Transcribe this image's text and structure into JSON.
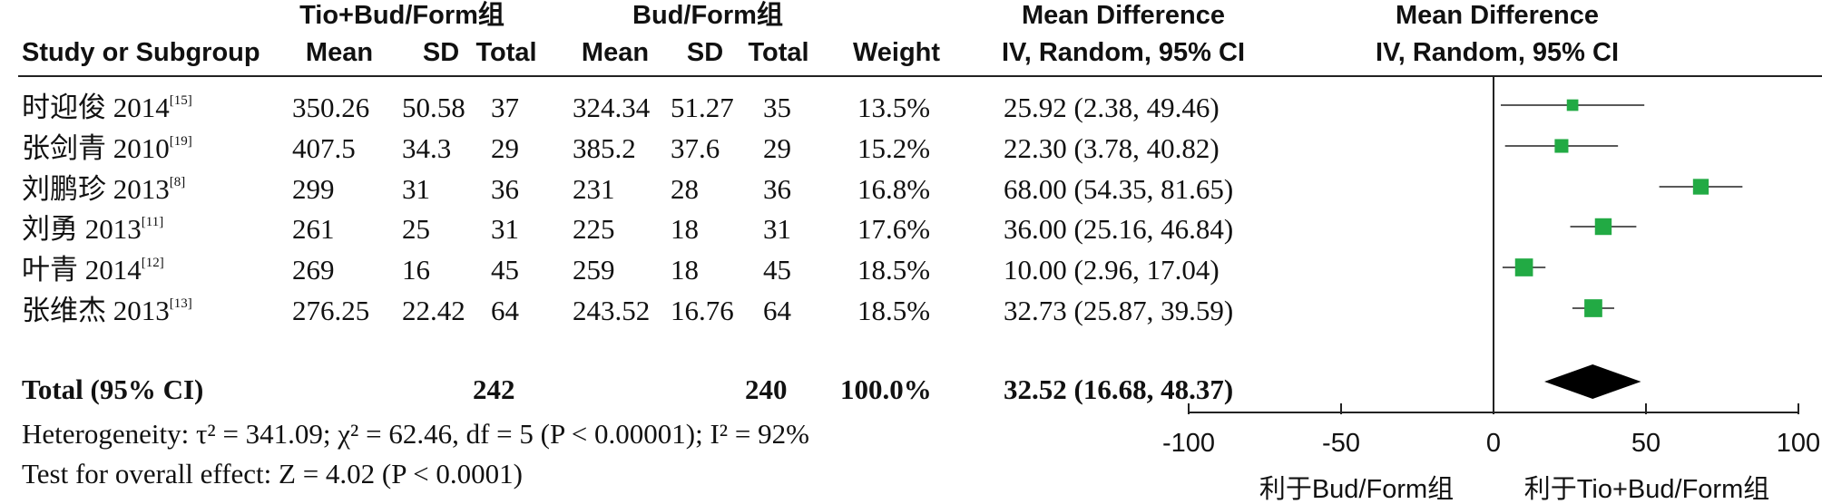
{
  "header": {
    "group1": "Tio+Bud/Form组",
    "group2": "Bud/Form组",
    "md_title": "Mean Difference",
    "md_title_plot": "Mean Difference",
    "col_study": "Study or Subgroup",
    "col_mean1": "Mean",
    "col_sd1": "SD",
    "col_total1": "Total",
    "col_mean2": "Mean",
    "col_sd2": "SD",
    "col_total2": "Total",
    "col_weight": "Weight",
    "col_ci": "IV, Random, 95% CI",
    "col_ci_plot": "IV, Random, 95% CI"
  },
  "studies": [
    {
      "name": "时迎俊 2014",
      "ref": "[15]",
      "mean1": "350.26",
      "sd1": "50.58",
      "n1": "37",
      "mean2": "324.34",
      "sd2": "51.27",
      "n2": "35",
      "weight": "13.5%",
      "ci": "25.92 (2.38, 49.46)"
    },
    {
      "name": "张剑青 2010",
      "ref": "[19]",
      "mean1": "407.5",
      "sd1": "34.3",
      "n1": "29",
      "mean2": "385.2",
      "sd2": "37.6",
      "n2": "29",
      "weight": "15.2%",
      "ci": "22.30 (3.78, 40.82)"
    },
    {
      "name": "刘鹏珍 2013",
      "ref": "[8]",
      "mean1": "299",
      "sd1": "31",
      "n1": "36",
      "mean2": "231",
      "sd2": "28",
      "n2": "36",
      "weight": "16.8%",
      "ci": "68.00 (54.35, 81.65)"
    },
    {
      "name": "刘勇 2013",
      "ref": "[11]",
      "mean1": "261",
      "sd1": "25",
      "n1": "31",
      "mean2": "225",
      "sd2": "18",
      "n2": "31",
      "weight": "17.6%",
      "ci": "36.00 (25.16, 46.84)"
    },
    {
      "name": "叶青 2014",
      "ref": "[12]",
      "mean1": "269",
      "sd1": "16",
      "n1": "45",
      "mean2": "259",
      "sd2": "18",
      "n2": "45",
      "weight": "18.5%",
      "ci": "10.00 (2.96, 17.04)"
    },
    {
      "name": "张维杰 2013",
      "ref": "[13]",
      "mean1": "276.25",
      "sd1": "22.42",
      "n1": "64",
      "mean2": "243.52",
      "sd2": "16.76",
      "n2": "64",
      "weight": "18.5%",
      "ci": "32.73 (25.87, 39.59)"
    }
  ],
  "total": {
    "label": "Total (95% CI)",
    "n1": "242",
    "n2": "240",
    "weight": "100.0%",
    "ci": "32.52 (16.68, 48.37)"
  },
  "footer": {
    "heterogeneity": "Heterogeneity: τ² = 341.09; χ² = 62.46, df = 5 (P < 0.00001); I² = 92%",
    "overall": "Test for overall effect: Z = 4.02 (P < 0.0001)"
  },
  "axis": {
    "favours_left": "利于Bud/Form组",
    "favours_right": "利于Tio+Bud/Form组"
  },
  "chart_data": {
    "type": "scatter",
    "title": "Mean Difference IV, Random, 95% CI",
    "xlim": [
      -100,
      100
    ],
    "ticks": [
      -100,
      -50,
      0,
      50,
      100
    ],
    "tick_labels": [
      "-100",
      "-50",
      "0",
      "50",
      "100"
    ],
    "reference_line": 0,
    "marker_color": "#22aa44",
    "points": [
      {
        "label": "时迎俊 2014",
        "md": 25.92,
        "lo": 2.38,
        "hi": 49.46,
        "weight": 13.5
      },
      {
        "label": "张剑青 2010",
        "md": 22.3,
        "lo": 3.78,
        "hi": 40.82,
        "weight": 15.2
      },
      {
        "label": "刘鹏珍 2013",
        "md": 68.0,
        "lo": 54.35,
        "hi": 81.65,
        "weight": 16.8
      },
      {
        "label": "刘勇 2013",
        "md": 36.0,
        "lo": 25.16,
        "hi": 46.84,
        "weight": 17.6
      },
      {
        "label": "叶青 2014",
        "md": 10.0,
        "lo": 2.96,
        "hi": 17.04,
        "weight": 18.5
      },
      {
        "label": "张维杰 2013",
        "md": 32.73,
        "lo": 25.87,
        "hi": 39.59,
        "weight": 18.5
      }
    ],
    "summary": {
      "label": "Total (95% CI)",
      "md": 32.52,
      "lo": 16.68,
      "hi": 48.37
    }
  }
}
